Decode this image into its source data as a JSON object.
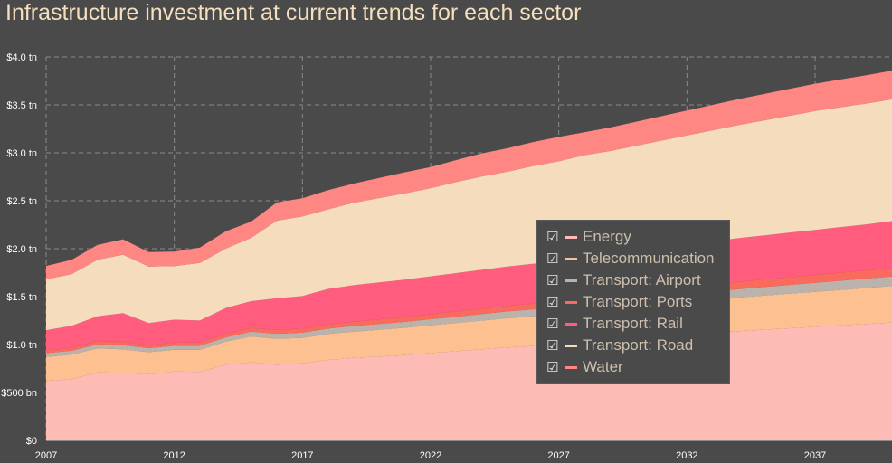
{
  "chart_data": {
    "type": "area",
    "stacked": true,
    "title": "Infrastructure investment at current trends for each sector",
    "x": [
      2007,
      2008,
      2009,
      2010,
      2011,
      2012,
      2013,
      2014,
      2015,
      2016,
      2017,
      2018,
      2019,
      2020,
      2021,
      2022,
      2023,
      2024,
      2025,
      2026,
      2027,
      2028,
      2029,
      2030,
      2031,
      2032,
      2033,
      2034,
      2035,
      2036,
      2037,
      2038,
      2039,
      2040
    ],
    "x_ticks": [
      2007,
      2012,
      2017,
      2022,
      2027,
      2032,
      2037
    ],
    "y_ticks": [
      0,
      500,
      1000,
      1500,
      2000,
      2500,
      3000,
      3500,
      4000
    ],
    "y_tick_labels": [
      "$0",
      "$500 bn",
      "$1.0 tn",
      "$1.5 tn",
      "$2.0 tn",
      "$2.5 tn",
      "$3.0 tn",
      "$3.5 tn",
      "$4.0 tn"
    ],
    "ylim": [
      0,
      4000
    ],
    "xlim": [
      2007,
      2040
    ],
    "units": "USD billions",
    "series": [
      {
        "name": "Energy",
        "color": "#fcbbb4",
        "values": [
          620,
          640,
          710,
          705,
          690,
          720,
          715,
          790,
          815,
          790,
          805,
          840,
          860,
          875,
          890,
          910,
          930,
          950,
          970,
          985,
          1000,
          1020,
          1040,
          1060,
          1080,
          1100,
          1120,
          1140,
          1155,
          1170,
          1185,
          1200,
          1215,
          1230
        ]
      },
      {
        "name": "Telecommunication",
        "color": "#fdc090",
        "values": [
          250,
          255,
          250,
          245,
          230,
          225,
          230,
          240,
          270,
          270,
          265,
          270,
          275,
          280,
          285,
          290,
          295,
          300,
          305,
          310,
          315,
          320,
          325,
          330,
          335,
          340,
          345,
          350,
          355,
          360,
          365,
          370,
          375,
          380
        ]
      },
      {
        "name": "Transport: Airport",
        "color": "#bbb3ab",
        "values": [
          40,
          40,
          42,
          44,
          42,
          42,
          43,
          45,
          50,
          52,
          54,
          56,
          58,
          60,
          62,
          64,
          66,
          68,
          70,
          72,
          74,
          76,
          78,
          80,
          82,
          84,
          86,
          88,
          90,
          92,
          94,
          96,
          98,
          100
        ]
      },
      {
        "name": "Transport: Ports",
        "color": "#fb6b5d",
        "values": [
          30,
          30,
          32,
          34,
          32,
          32,
          33,
          35,
          38,
          40,
          42,
          44,
          46,
          48,
          50,
          52,
          54,
          56,
          58,
          60,
          62,
          64,
          66,
          68,
          70,
          72,
          74,
          76,
          78,
          80,
          82,
          84,
          86,
          88
        ]
      },
      {
        "name": "Transport: Rail",
        "color": "#ff5c7e",
        "values": [
          210,
          230,
          260,
          300,
          230,
          240,
          230,
          270,
          280,
          330,
          340,
          370,
          380,
          385,
          390,
          395,
          400,
          405,
          410,
          415,
          420,
          425,
          430,
          435,
          440,
          445,
          450,
          455,
          460,
          465,
          470,
          475,
          480,
          490
        ]
      },
      {
        "name": "Transport: Road",
        "color": "#f4dcbd",
        "values": [
          530,
          540,
          590,
          610,
          590,
          560,
          600,
          620,
          660,
          810,
          830,
          830,
          860,
          880,
          900,
          920,
          950,
          975,
          990,
          1020,
          1040,
          1070,
          1080,
          1100,
          1120,
          1140,
          1160,
          1180,
          1200,
          1220,
          1240,
          1250,
          1260,
          1270
        ]
      },
      {
        "name": "Water",
        "color": "#ff8783",
        "values": [
          140,
          150,
          155,
          160,
          150,
          150,
          160,
          180,
          170,
          190,
          190,
          200,
          200,
          210,
          220,
          220,
          230,
          240,
          245,
          250,
          255,
          240,
          245,
          250,
          255,
          260,
          265,
          270,
          275,
          280,
          285,
          290,
          295,
          300
        ]
      }
    ]
  },
  "legend": {
    "items": [
      {
        "label": "Energy",
        "check": "☑"
      },
      {
        "label": "Telecommunication",
        "check": "☑"
      },
      {
        "label": "Transport: Airport",
        "check": "☑"
      },
      {
        "label": "Transport: Ports",
        "check": "☑"
      },
      {
        "label": "Transport: Rail",
        "check": "☑"
      },
      {
        "label": "Transport: Road",
        "check": "☑"
      },
      {
        "label": "Water",
        "check": "☑"
      }
    ]
  }
}
